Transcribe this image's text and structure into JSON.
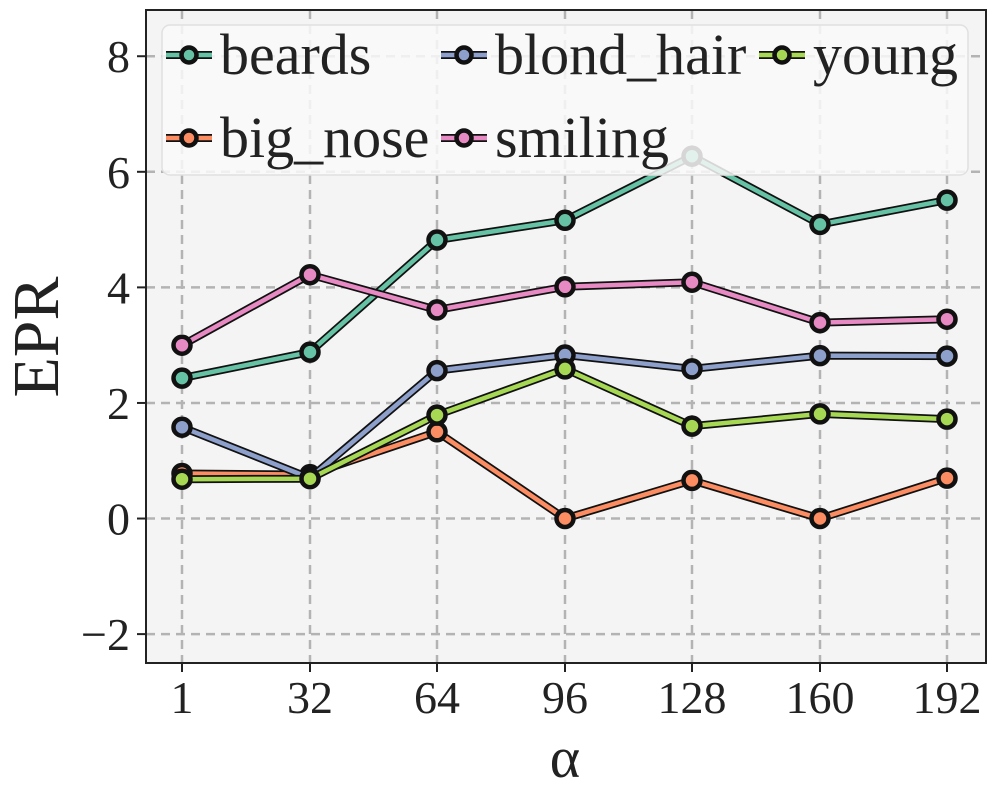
{
  "chart_data": {
    "type": "line",
    "title": "",
    "xlabel": "α",
    "ylabel": "EPR",
    "categories": [
      "1",
      "32",
      "64",
      "96",
      "128",
      "160",
      "192"
    ],
    "ylim": [
      -2.5,
      8.8
    ],
    "yticks": [
      -2,
      0,
      2,
      4,
      6,
      8
    ],
    "ytick_labels": [
      "−2",
      "0",
      "2",
      "4",
      "6",
      "8"
    ],
    "grid": true,
    "legend_position": "top",
    "series": [
      {
        "name": "beards",
        "color": "#66c2a5",
        "values": [
          2.43,
          2.88,
          4.82,
          5.16,
          6.27,
          5.09,
          5.51
        ]
      },
      {
        "name": "big_nose",
        "color": "#fc8d62",
        "values": [
          0.78,
          0.76,
          1.5,
          0.0,
          0.66,
          0.0,
          0.7
        ]
      },
      {
        "name": "blond_hair",
        "color": "#8da0cb",
        "values": [
          1.58,
          0.7,
          2.56,
          2.83,
          2.59,
          2.82,
          2.81
        ]
      },
      {
        "name": "smiling",
        "color": "#e78ac3",
        "values": [
          3.0,
          4.22,
          3.61,
          4.01,
          4.09,
          3.39,
          3.45
        ]
      },
      {
        "name": "young",
        "color": "#a6d854",
        "values": [
          0.68,
          0.69,
          1.79,
          2.59,
          1.6,
          1.81,
          1.72
        ]
      }
    ]
  }
}
